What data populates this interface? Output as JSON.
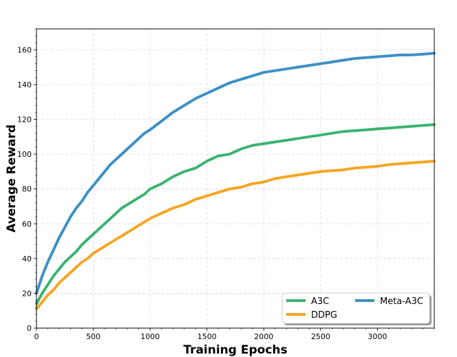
{
  "chart_data": {
    "type": "line",
    "xlabel": "Training Epochs",
    "ylabel": "Average Reward",
    "xlim": [
      0,
      3500
    ],
    "ylim": [
      0,
      172
    ],
    "x_ticks": [
      0,
      500,
      1000,
      1500,
      2000,
      2500,
      3000
    ],
    "y_ticks": [
      0,
      20,
      40,
      60,
      80,
      100,
      120,
      140,
      160
    ],
    "grid": true,
    "legend_position": "bottom-right",
    "legend_columns": 2,
    "series": [
      {
        "name": "A3C",
        "color": "#3cb371",
        "x": [
          0,
          50,
          100,
          150,
          200,
          250,
          300,
          350,
          400,
          450,
          500,
          550,
          600,
          650,
          700,
          750,
          800,
          850,
          900,
          950,
          1000,
          1100,
          1200,
          1300,
          1400,
          1500,
          1600,
          1700,
          1800,
          1900,
          2000,
          2100,
          2200,
          2300,
          2400,
          2500,
          2600,
          2700,
          2800,
          2900,
          3000,
          3100,
          3200,
          3300,
          3400,
          3500
        ],
        "y": [
          14,
          20,
          25,
          30,
          34,
          38,
          41,
          44,
          48,
          51,
          54,
          57,
          60,
          63,
          66,
          69,
          71,
          73,
          75,
          77,
          80,
          83,
          87,
          90,
          92,
          96,
          99,
          100,
          103,
          105,
          106,
          107,
          108,
          109,
          110,
          111,
          112,
          113,
          113.5,
          114,
          114.5,
          115,
          115.5,
          116,
          116.5,
          117
        ]
      },
      {
        "name": "DDPG",
        "color": "#f5a623",
        "x": [
          0,
          50,
          100,
          150,
          200,
          250,
          300,
          350,
          400,
          450,
          500,
          550,
          600,
          650,
          700,
          750,
          800,
          850,
          900,
          950,
          1000,
          1100,
          1200,
          1300,
          1400,
          1500,
          1600,
          1700,
          1800,
          1900,
          2000,
          2100,
          2200,
          2300,
          2400,
          2500,
          2600,
          2700,
          2800,
          2900,
          3000,
          3100,
          3200,
          3300,
          3400,
          3500
        ],
        "y": [
          11,
          15,
          19,
          22,
          26,
          29,
          32,
          35,
          38,
          40,
          43,
          45,
          47,
          49,
          51,
          53,
          55,
          57,
          59,
          61,
          63,
          66,
          69,
          71,
          74,
          76,
          78,
          80,
          81,
          83,
          84,
          86,
          87,
          88,
          89,
          90,
          90.5,
          91,
          92,
          92.5,
          93,
          94,
          94.5,
          95,
          95.5,
          96
        ]
      },
      {
        "name": "Meta-A3C",
        "color": "#3d8fc6",
        "x": [
          0,
          50,
          100,
          150,
          200,
          250,
          300,
          350,
          400,
          450,
          500,
          550,
          600,
          650,
          700,
          750,
          800,
          850,
          900,
          950,
          1000,
          1100,
          1200,
          1300,
          1400,
          1500,
          1600,
          1700,
          1800,
          1900,
          2000,
          2100,
          2200,
          2300,
          2400,
          2500,
          2600,
          2700,
          2800,
          2900,
          3000,
          3100,
          3200,
          3300,
          3400,
          3500
        ],
        "y": [
          20,
          30,
          38,
          45,
          52,
          58,
          64,
          69,
          73,
          78,
          82,
          86,
          90,
          94,
          97,
          100,
          103,
          106,
          109,
          112,
          114,
          119,
          124,
          128,
          132,
          135,
          138,
          141,
          143,
          145,
          147,
          148,
          149,
          150,
          151,
          152,
          153,
          154,
          155,
          155.5,
          156,
          156.5,
          157,
          157,
          157.5,
          158
        ]
      }
    ]
  }
}
